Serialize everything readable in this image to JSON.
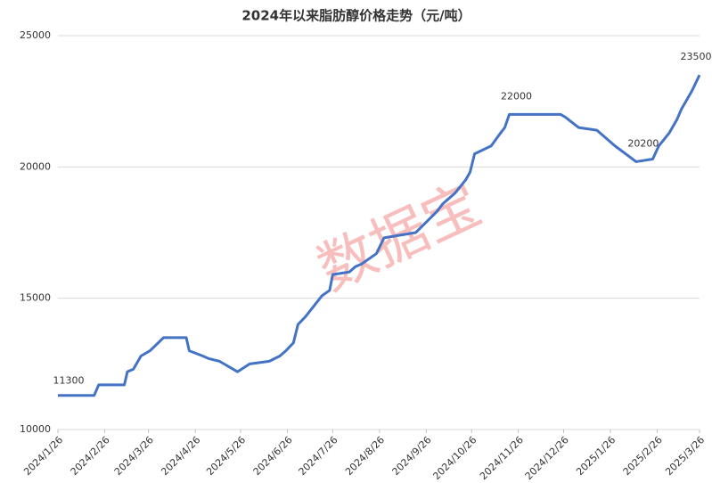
{
  "chart_data": {
    "type": "line",
    "title": "2024年以来脂肪醇价格走势（元/吨）",
    "watermark": "数据宝",
    "x": [
      "2024/1/26",
      "2024/2/19",
      "2024/2/22",
      "2024/3/10",
      "2024/3/12",
      "2024/3/16",
      "2024/3/21",
      "2024/3/27",
      "2024/4/5",
      "2024/4/20",
      "2024/4/22",
      "2024/5/1",
      "2024/5/5",
      "2024/5/12",
      "2024/5/24",
      "2024/6/1",
      "2024/6/14",
      "2024/6/21",
      "2024/6/25",
      "2024/6/30",
      "2024/7/3",
      "2024/7/8",
      "2024/7/19",
      "2024/7/24",
      "2024/7/26",
      "2024/8/6",
      "2024/8/10",
      "2024/8/14",
      "2024/8/24",
      "2024/8/29",
      "2024/9/19",
      "2024/10/3",
      "2024/10/7",
      "2024/10/11",
      "2024/10/15",
      "2024/10/22",
      "2024/10/25",
      "2024/10/28",
      "2024/11/8",
      "2024/11/13",
      "2024/11/17",
      "2024/11/20",
      "2024/12/24",
      "2024/12/27",
      "2025/1/5",
      "2025/1/17",
      "2025/1/29",
      "2025/2/12",
      "2025/2/23",
      "2025/2/27",
      "2025/3/6",
      "2025/3/11",
      "2025/3/14",
      "2025/3/18",
      "2025/3/21",
      "2025/3/26"
    ],
    "series": [
      {
        "name": "脂肪醇价格",
        "color": "#4472c4",
        "values": [
          11300,
          11300,
          11700,
          11700,
          12200,
          12300,
          12800,
          13000,
          13500,
          13500,
          13000,
          12800,
          12700,
          12600,
          12200,
          12500,
          12600,
          12800,
          13000,
          13300,
          14000,
          14300,
          15100,
          15300,
          15900,
          16000,
          16200,
          16300,
          16700,
          17300,
          17500,
          18300,
          18600,
          18800,
          19000,
          19500,
          19800,
          20500,
          20800,
          21200,
          21500,
          22000,
          22000,
          21900,
          21500,
          21400,
          20800,
          20200,
          20300,
          20800,
          21300,
          21800,
          22200,
          22600,
          22900,
          23500
        ]
      }
    ],
    "xlim": [
      "2024/1/26",
      "2025/3/26"
    ],
    "xticks": [
      "2024/1/26",
      "2024/2/26",
      "2024/3/26",
      "2024/4/26",
      "2024/5/26",
      "2024/6/26",
      "2024/7/26",
      "2024/8/26",
      "2024/9/26",
      "2024/10/26",
      "2024/11/26",
      "2024/12/26",
      "2025/1/26",
      "2025/2/26",
      "2025/3/26"
    ],
    "ylim": [
      10000,
      25000
    ],
    "yticks": [
      10000,
      15000,
      20000,
      25000
    ],
    "grid": true
  }
}
